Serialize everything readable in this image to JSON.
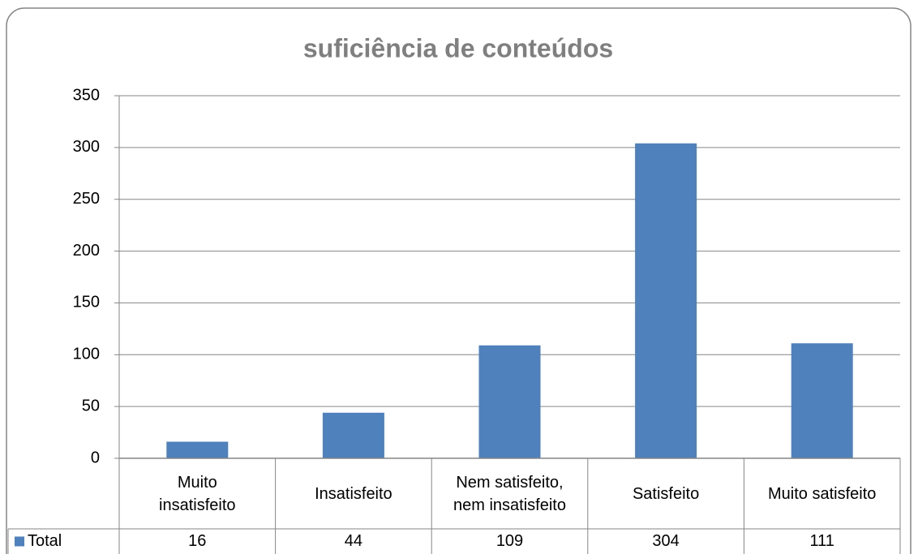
{
  "chart_data": {
    "type": "bar",
    "title": "suficiência de conteúdos",
    "categories": [
      "Muito insatisfeito",
      "Insatisfeito",
      "Nem satisfeito, nem insatisfeito",
      "Satisfeito",
      "Muito satisfeito"
    ],
    "series": [
      {
        "name": "Total",
        "color": "#4f81bd",
        "values": [
          16,
          44,
          109,
          304,
          111
        ]
      }
    ],
    "ylim": [
      0,
      350
    ],
    "yticks": [
      0,
      50,
      100,
      150,
      200,
      250,
      300,
      350
    ],
    "grid": true,
    "data_table": true
  }
}
